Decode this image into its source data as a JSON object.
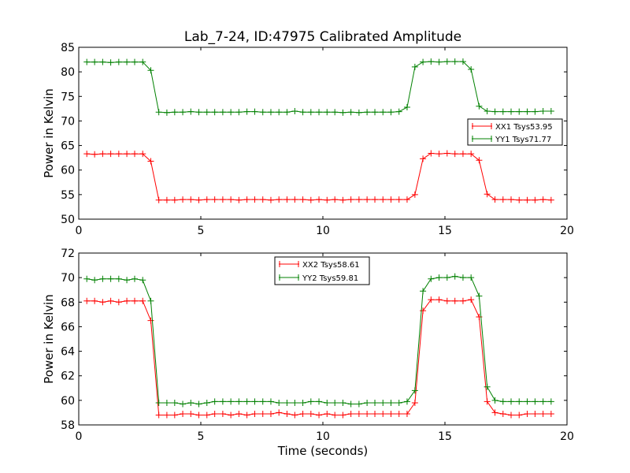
{
  "chart_data": [
    {
      "type": "line",
      "title": "Lab_7-24, ID:47975 Calibrated Amplitude",
      "xlabel": "",
      "ylabel": "Power in Kelvin",
      "xlim": [
        0,
        20
      ],
      "ylim": [
        50,
        85
      ],
      "xticks": [
        "0",
        "5",
        "10",
        "15",
        "20"
      ],
      "yticks": [
        "50",
        "55",
        "60",
        "65",
        "70",
        "75",
        "80",
        "85"
      ],
      "legend_position": "right",
      "x": [
        0.33,
        0.65,
        0.98,
        1.31,
        1.64,
        1.97,
        2.29,
        2.62,
        2.95,
        3.28,
        3.61,
        3.93,
        4.26,
        4.59,
        4.92,
        5.25,
        5.57,
        5.9,
        6.23,
        6.56,
        6.89,
        7.21,
        7.54,
        7.87,
        8.2,
        8.53,
        8.85,
        9.18,
        9.51,
        9.84,
        10.17,
        10.49,
        10.82,
        11.15,
        11.48,
        11.81,
        12.13,
        12.46,
        12.79,
        13.12,
        13.45,
        13.77,
        14.1,
        14.43,
        14.76,
        15.09,
        15.41,
        15.74,
        16.07,
        16.4,
        16.73,
        17.05,
        17.38,
        17.71,
        18.04,
        18.37,
        18.69,
        19.02,
        19.35
      ],
      "series": [
        {
          "name": "XX1 Tsys53.95",
          "color": "#ff0000",
          "values": [
            63.3,
            63.2,
            63.3,
            63.3,
            63.3,
            63.3,
            63.3,
            63.3,
            61.8,
            53.9,
            53.9,
            53.9,
            54.0,
            54.0,
            53.9,
            54.0,
            54.0,
            54.0,
            54.0,
            53.9,
            54.0,
            54.0,
            54.0,
            53.9,
            54.0,
            54.0,
            54.0,
            54.0,
            53.9,
            54.0,
            53.9,
            54.0,
            53.9,
            54.0,
            54.0,
            54.0,
            54.0,
            54.0,
            54.0,
            54.0,
            54.0,
            55.0,
            62.3,
            63.4,
            63.3,
            63.4,
            63.3,
            63.3,
            63.3,
            62.0,
            55.1,
            54.0,
            54.0,
            54.0,
            53.9,
            53.9,
            53.9,
            54.0,
            53.9
          ]
        },
        {
          "name": "YY1 Tsys71.77",
          "color": "#008000",
          "values": [
            82.0,
            82.0,
            82.0,
            81.9,
            82.0,
            82.0,
            82.0,
            82.0,
            80.3,
            71.8,
            71.7,
            71.8,
            71.8,
            71.9,
            71.8,
            71.8,
            71.8,
            71.8,
            71.8,
            71.8,
            71.9,
            71.9,
            71.8,
            71.8,
            71.8,
            71.8,
            72.0,
            71.8,
            71.8,
            71.8,
            71.8,
            71.8,
            71.7,
            71.8,
            71.7,
            71.8,
            71.8,
            71.8,
            71.8,
            71.9,
            72.8,
            81.0,
            82.0,
            82.1,
            82.0,
            82.1,
            82.1,
            82.1,
            80.5,
            73.0,
            72.0,
            71.9,
            71.9,
            71.9,
            71.9,
            71.9,
            71.9,
            72.0,
            72.0
          ]
        }
      ]
    },
    {
      "type": "line",
      "title": "",
      "xlabel": "Time (seconds)",
      "ylabel": "Power in Kelvin",
      "xlim": [
        0,
        20
      ],
      "ylim": [
        58,
        72
      ],
      "xticks": [
        "0",
        "5",
        "10",
        "15",
        "20"
      ],
      "yticks": [
        "58",
        "60",
        "62",
        "64",
        "66",
        "68",
        "70",
        "72"
      ],
      "legend_position": "upper center",
      "x": [
        0.33,
        0.65,
        0.98,
        1.31,
        1.64,
        1.97,
        2.29,
        2.62,
        2.95,
        3.28,
        3.61,
        3.93,
        4.26,
        4.59,
        4.92,
        5.25,
        5.57,
        5.9,
        6.23,
        6.56,
        6.89,
        7.21,
        7.54,
        7.87,
        8.2,
        8.53,
        8.85,
        9.18,
        9.51,
        9.84,
        10.17,
        10.49,
        10.82,
        11.15,
        11.48,
        11.81,
        12.13,
        12.46,
        12.79,
        13.12,
        13.45,
        13.77,
        14.1,
        14.43,
        14.76,
        15.09,
        15.41,
        15.74,
        16.07,
        16.4,
        16.73,
        17.05,
        17.38,
        17.71,
        18.04,
        18.37,
        18.69,
        19.02,
        19.35
      ],
      "series": [
        {
          "name": "XX2 Tsys58.61",
          "color": "#ff0000",
          "values": [
            68.1,
            68.1,
            68.0,
            68.1,
            68.0,
            68.1,
            68.1,
            68.1,
            66.5,
            58.8,
            58.8,
            58.8,
            58.9,
            58.9,
            58.8,
            58.8,
            58.9,
            58.9,
            58.8,
            58.9,
            58.8,
            58.9,
            58.9,
            58.9,
            59.0,
            58.9,
            58.8,
            58.9,
            58.9,
            58.8,
            58.9,
            58.8,
            58.8,
            58.9,
            58.9,
            58.9,
            58.9,
            58.9,
            58.9,
            58.9,
            58.9,
            59.8,
            67.3,
            68.2,
            68.2,
            68.1,
            68.1,
            68.1,
            68.2,
            66.8,
            59.9,
            59.0,
            58.9,
            58.8,
            58.8,
            58.9,
            58.9,
            58.9,
            58.9
          ]
        },
        {
          "name": "YY2 Tsys59.81",
          "color": "#008000",
          "values": [
            69.9,
            69.8,
            69.9,
            69.9,
            69.9,
            69.8,
            69.9,
            69.8,
            68.1,
            59.8,
            59.8,
            59.8,
            59.7,
            59.8,
            59.7,
            59.8,
            59.9,
            59.9,
            59.9,
            59.9,
            59.9,
            59.9,
            59.9,
            59.9,
            59.8,
            59.8,
            59.8,
            59.8,
            59.9,
            59.9,
            59.8,
            59.8,
            59.8,
            59.7,
            59.7,
            59.8,
            59.8,
            59.8,
            59.8,
            59.8,
            59.9,
            60.8,
            68.9,
            69.9,
            70.0,
            70.0,
            70.1,
            70.0,
            70.0,
            68.5,
            61.1,
            60.0,
            59.9,
            59.9,
            59.9,
            59.9,
            59.9,
            59.9,
            59.9
          ]
        }
      ]
    }
  ]
}
